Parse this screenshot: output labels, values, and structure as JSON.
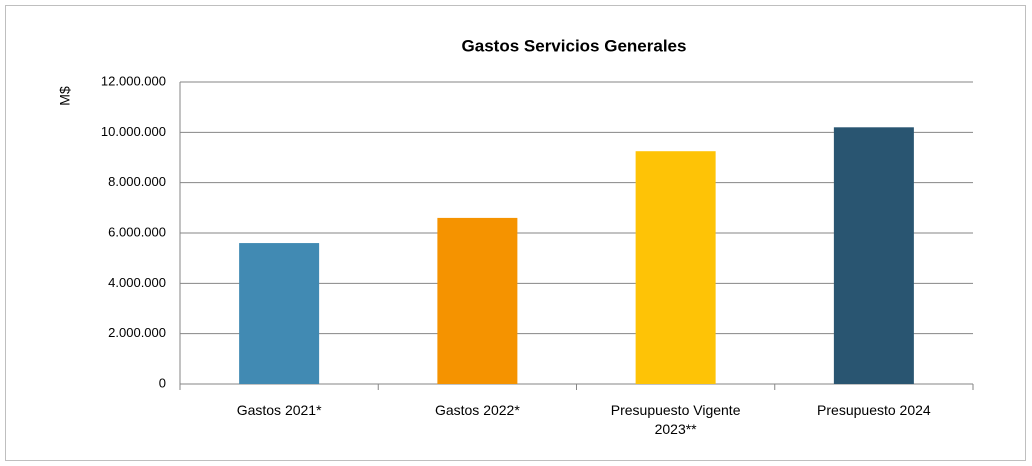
{
  "chart_data": {
    "type": "bar",
    "title": "Gastos Servicios Generales",
    "y_label": "M$",
    "categories": [
      "Gastos 2021*",
      "Gastos 2022*",
      "Presupuesto Vigente 2023**",
      "Presupuesto 2024"
    ],
    "values": [
      5600000,
      6600000,
      9250000,
      10200000
    ],
    "colors": [
      "#418ab3",
      "#f59300",
      "#fec306",
      "#295571"
    ],
    "ylim": [
      0,
      12000000
    ],
    "yticks": [
      0,
      {
        "value": 2000000,
        "label": "2.000.000"
      },
      {
        "value": 4000000,
        "label": "4.000.000"
      },
      {
        "value": 6000000,
        "label": "6.000.000"
      },
      {
        "value": 8000000,
        "label": "8.000.000"
      },
      {
        "value": 10000000,
        "label": "10.000.000"
      },
      {
        "value": 12000000,
        "label": "12.000.000"
      }
    ],
    "grid": true
  }
}
